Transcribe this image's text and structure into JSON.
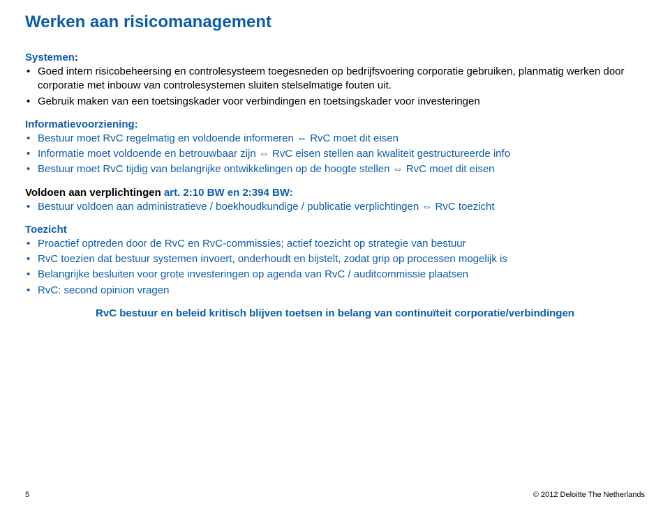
{
  "colors": {
    "blue": "#0b5cab",
    "black": "#000000",
    "background": "#ffffff"
  },
  "title": "Werken aan risicomanagement",
  "sections": {
    "systemen": {
      "heading": "Systemen",
      "colon": ":",
      "items": [
        "Goed intern risicobeheersing en controlesysteem toegesneden op bedrijfsvoering corporatie gebruiken, planmatig werken door corporatie met inbouw van controlesystemen sluiten stelselmatige fouten uit.",
        "Gebruik maken van een toetsingskader voor verbindingen en toetsingskader voor investeringen"
      ]
    },
    "informatie": {
      "heading": "Informatievoorziening:",
      "items": [
        {
          "pre": "Bestuur moet RvC regelmatig en voldoende  informeren ",
          "arrow": "⇔",
          "post": " RvC moet dit eisen"
        },
        {
          "pre": "Informatie moet voldoende en betrouwbaar zijn ",
          "arrow": "⇔",
          "post": " RvC eisen stellen aan kwaliteit gestructureerde info"
        },
        {
          "pre": "Bestuur moet RvC tijdig van belangrijke ontwikkelingen op de hoogte stellen ",
          "arrow": "⇔",
          "post": " RvC moet dit eisen"
        }
      ]
    },
    "voldoen": {
      "heading_black": "Voldoen aan verplichtingen ",
      "heading_blue": " art. 2:10 BW en 2:394 BW:",
      "item": {
        "pre": "Bestuur voldoen aan administratieve / boekhoudkundige / publicatie verplichtingen ",
        "arrow": "⇔",
        "post": " RvC toezicht"
      }
    },
    "toezicht": {
      "heading": "Toezicht",
      "items": [
        "Proactief optreden door de RvC  en RvC-commissies; actief toezicht op strategie van bestuur",
        "RvC toezien dat bestuur systemen invoert, onderhoudt en bijstelt, zodat grip op processen mogelijk is",
        "Belangrijke besluiten voor grote investeringen op agenda van RvC / auditcommissie plaatsen",
        "RvC: second opinion vragen"
      ]
    }
  },
  "closing": "RvC bestuur en beleid kritisch blijven toetsen in belang van continuïteit corporatie/verbindingen",
  "footer": {
    "page": "5",
    "copyright": "© 2012 Deloitte The Netherlands"
  }
}
